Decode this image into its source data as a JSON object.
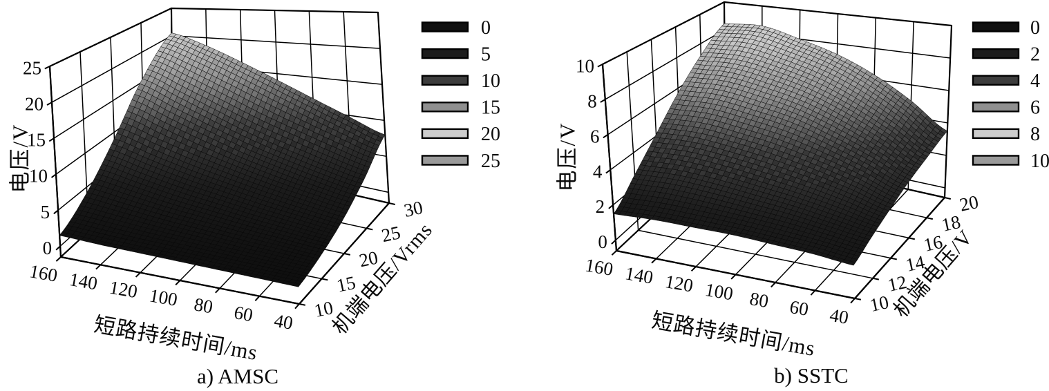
{
  "figure": {
    "background": "#ffffff",
    "ink_color": "#0a0a0a"
  },
  "colormap": {
    "stops": [
      0,
      0.2,
      0.4,
      0.6,
      0.8,
      1
    ],
    "grays": [
      12,
      28,
      62,
      143,
      198,
      212
    ]
  },
  "chart_data": [
    {
      "type": "surface3d",
      "caption": "a) AMSC",
      "xlabel": "短路持续时间/ms",
      "ylabel": "机端电压/Vrms",
      "zlabel": "电压/V",
      "x_axis": {
        "label": "短路持续时间/ms",
        "ticks": [
          160,
          140,
          120,
          100,
          80,
          60,
          40
        ]
      },
      "y_axis": {
        "label": "机端电压/Vrms",
        "ticks": [
          10,
          15,
          20,
          25,
          30
        ]
      },
      "z_axis": {
        "label": "电压/V",
        "ticks": [
          0,
          5,
          10,
          15,
          20,
          25
        ]
      },
      "x_range": [
        40,
        160
      ],
      "y_range": [
        10,
        30
      ],
      "z_range": [
        0,
        25
      ],
      "legend": {
        "labels": [
          "0",
          "5",
          "10",
          "15",
          "20",
          "25"
        ],
        "colors": [
          "#101010",
          "#1c1c1c",
          "#3d3d3d",
          "#8f8f8f",
          "#cdcdcd",
          "#9a9a9a"
        ]
      },
      "surface": {
        "x": [
          40,
          60,
          80,
          100,
          120,
          140,
          160
        ],
        "y": [
          10,
          15,
          20,
          25,
          30
        ],
        "z": [
          [
            0.8,
            0.9,
            1.0,
            1.1,
            1.2,
            1.3,
            1.5
          ],
          [
            1.6,
            1.9,
            2.2,
            2.6,
            3.0,
            3.6,
            4.2
          ],
          [
            3.0,
            3.6,
            4.3,
            5.2,
            6.2,
            7.5,
            9.0
          ],
          [
            5.2,
            6.2,
            7.5,
            9.0,
            11.0,
            13.2,
            15.5
          ],
          [
            8.0,
            9.8,
            11.8,
            14.0,
            16.3,
            18.6,
            20.5
          ]
        ]
      }
    },
    {
      "type": "surface3d",
      "caption": "b) SSTC",
      "xlabel": "短路持续时间/ms",
      "ylabel": "机端电压/V",
      "zlabel": "电压/V",
      "x_axis": {
        "label": "短路持续时间/ms",
        "ticks": [
          160,
          140,
          120,
          100,
          80,
          60,
          40
        ]
      },
      "y_axis": {
        "label": "机端电压/V",
        "ticks": [
          10,
          12,
          14,
          16,
          18,
          20
        ]
      },
      "z_axis": {
        "label": "电压/V",
        "ticks": [
          0,
          2,
          4,
          6,
          8,
          10
        ]
      },
      "x_range": [
        40,
        160
      ],
      "y_range": [
        10,
        20
      ],
      "z_range": [
        0,
        10
      ],
      "legend": {
        "labels": [
          "0",
          "2",
          "4",
          "6",
          "8",
          "10"
        ],
        "colors": [
          "#101010",
          "#1c1c1c",
          "#3d3d3d",
          "#8f8f8f",
          "#cdcdcd",
          "#9a9a9a"
        ]
      },
      "surface": {
        "x": [
          40,
          60,
          80,
          100,
          120,
          140,
          160
        ],
        "y": [
          10,
          12,
          14,
          16,
          18,
          20
        ],
        "z": [
          [
            1.2,
            1.4,
            1.5,
            1.6,
            1.6,
            1.6,
            1.5
          ],
          [
            1.7,
            2.0,
            2.3,
            2.5,
            2.7,
            2.8,
            2.7
          ],
          [
            2.2,
            2.8,
            3.3,
            3.7,
            4.0,
            4.2,
            4.1
          ],
          [
            2.7,
            3.6,
            4.4,
            5.1,
            5.5,
            5.8,
            5.7
          ],
          [
            3.1,
            4.3,
            5.4,
            6.3,
            6.9,
            7.3,
            7.2
          ],
          [
            3.5,
            5.0,
            6.3,
            7.3,
            8.0,
            8.6,
            8.45
          ]
        ]
      }
    }
  ]
}
